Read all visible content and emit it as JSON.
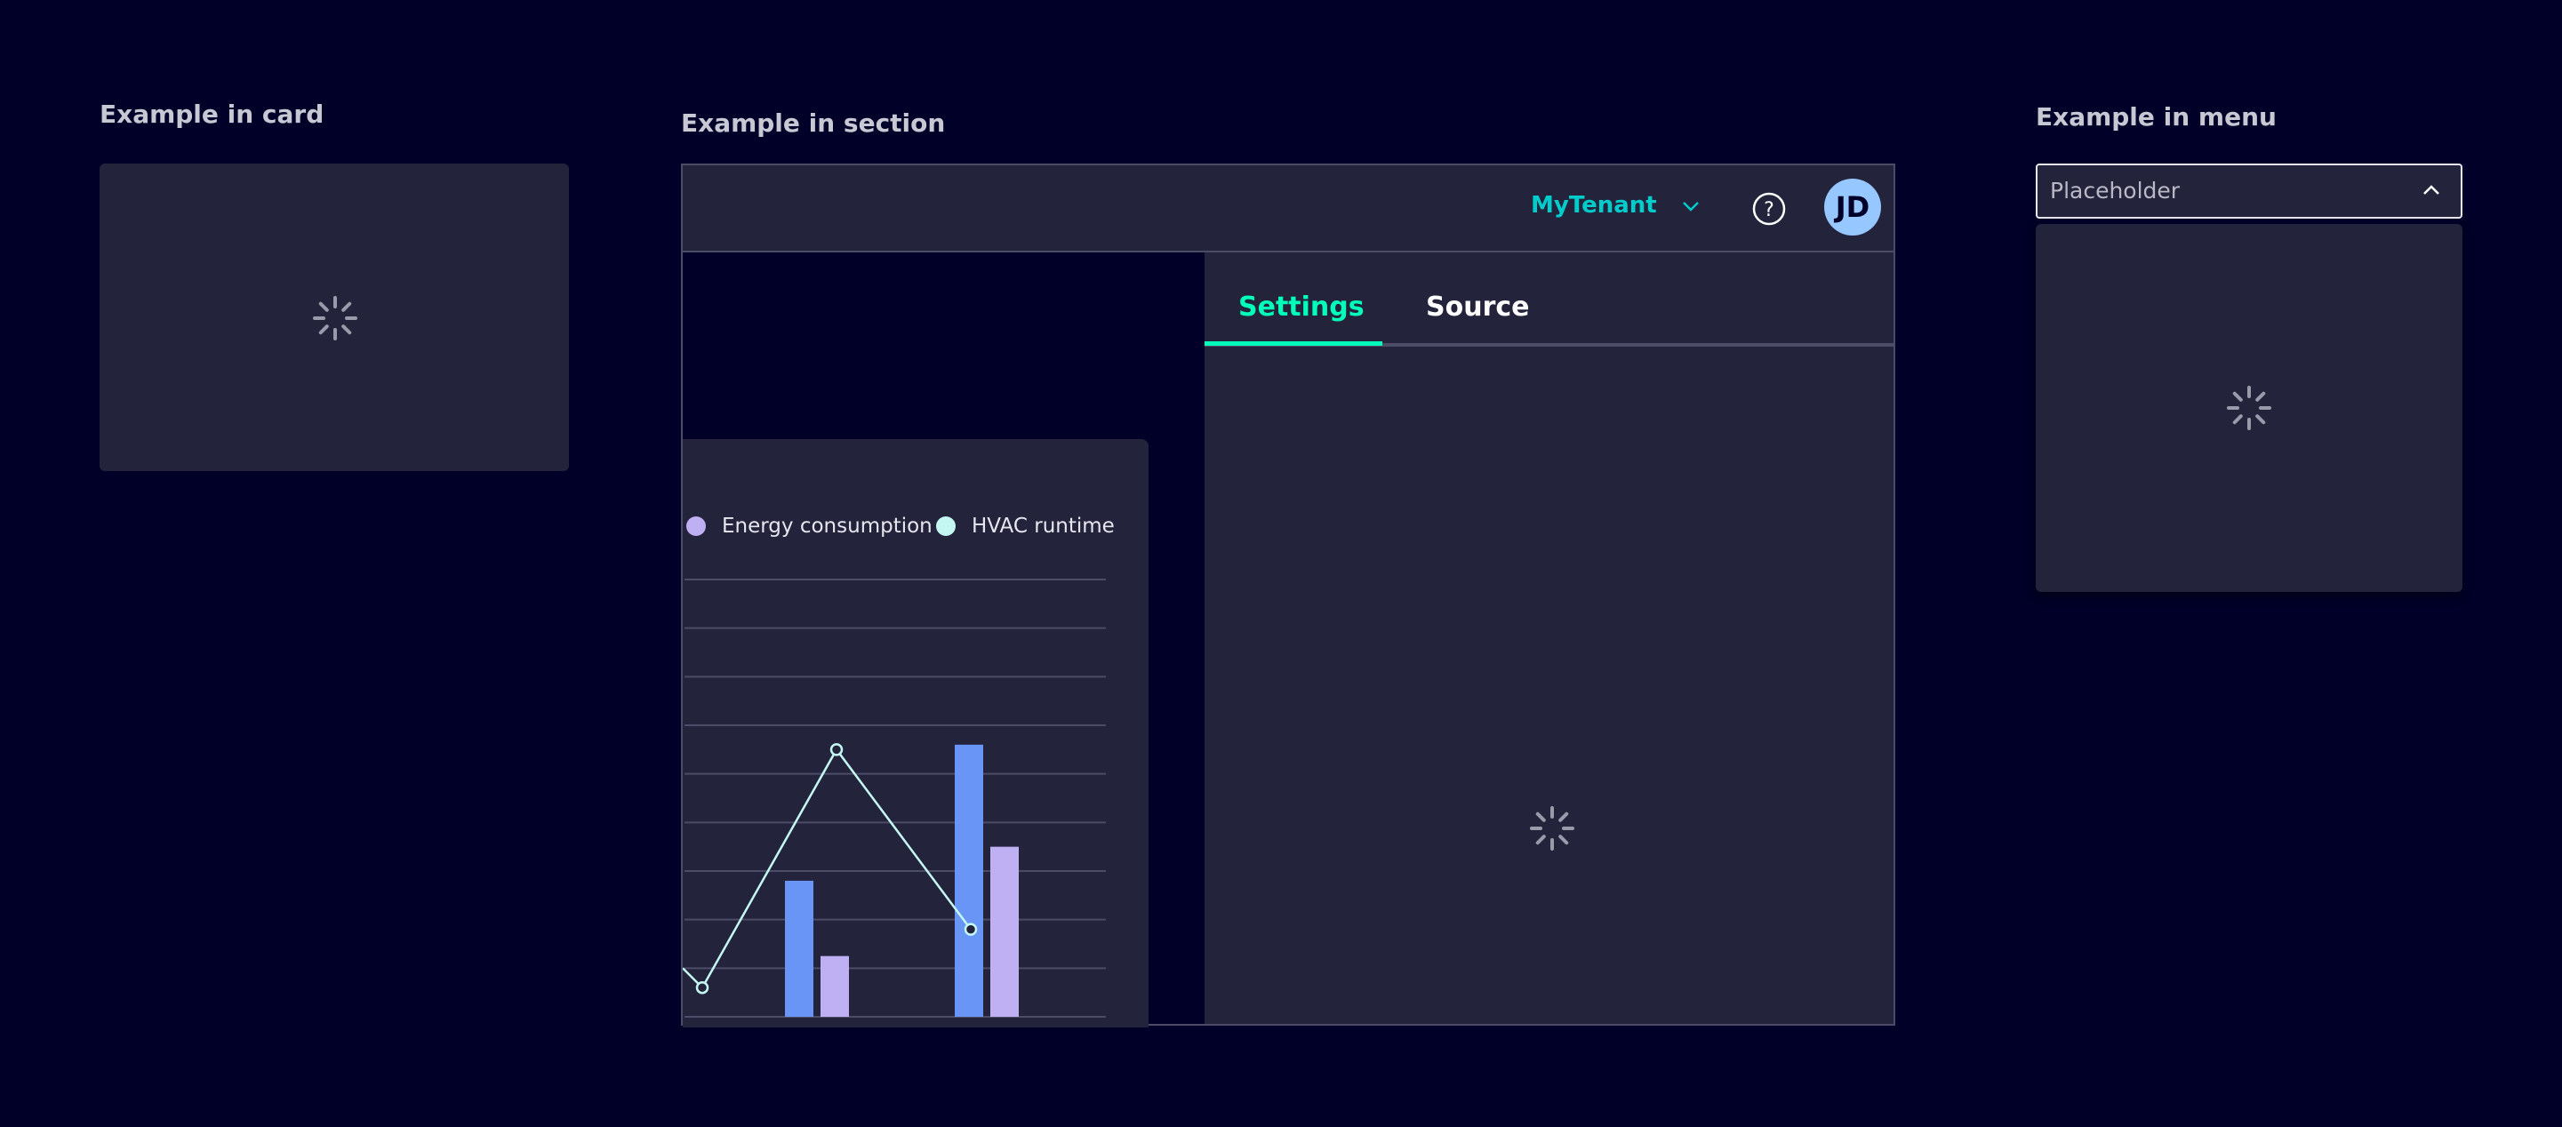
{
  "colors": {
    "background": "#000028",
    "surface": "#23233c",
    "accent_teal": "#00cccc",
    "tab_active": "#00ffb9",
    "avatar": "#97c7ff",
    "bar_blue": "#6895f6",
    "bar_lavender": "#bfb0f3",
    "line": "#c5f7f2"
  },
  "card_example": {
    "title": "Example in card",
    "icon": "loading-spinner-icon"
  },
  "section_example": {
    "title": "Example in section",
    "header": {
      "tenant": "MyTenant",
      "tenant_icon": "chevron-down-icon",
      "help_icon": "help-circle-icon",
      "avatar_initials": "JD"
    },
    "tabs": [
      {
        "label": "Settings",
        "active": true
      },
      {
        "label": "Source",
        "active": false
      }
    ],
    "panel_icon": "loading-spinner-icon"
  },
  "menu_example": {
    "title": "Example in menu",
    "select_placeholder": "Placeholder",
    "select_icon": "chevron-up-icon",
    "icon": "loading-spinner-icon"
  },
  "chart_data": {
    "type": "bar",
    "legend": [
      {
        "name": "Energy consumption",
        "color": "#bfb0f3"
      },
      {
        "name": "HVAC runtime",
        "color": "#c5f7f2"
      }
    ],
    "legend_placement": "top",
    "grid": true,
    "ylim": [
      0,
      9
    ],
    "series": [
      {
        "type": "bar",
        "color": "#6895f6",
        "values": [
          2.8,
          5.6
        ]
      },
      {
        "name": "Energy consumption",
        "type": "bar",
        "color": "#bfb0f3",
        "values": [
          1.25,
          3.5
        ]
      },
      {
        "name": "HVAC runtime",
        "type": "line",
        "color": "#c5f7f2",
        "values": [
          0.6,
          5.5,
          1.8
        ]
      }
    ]
  }
}
